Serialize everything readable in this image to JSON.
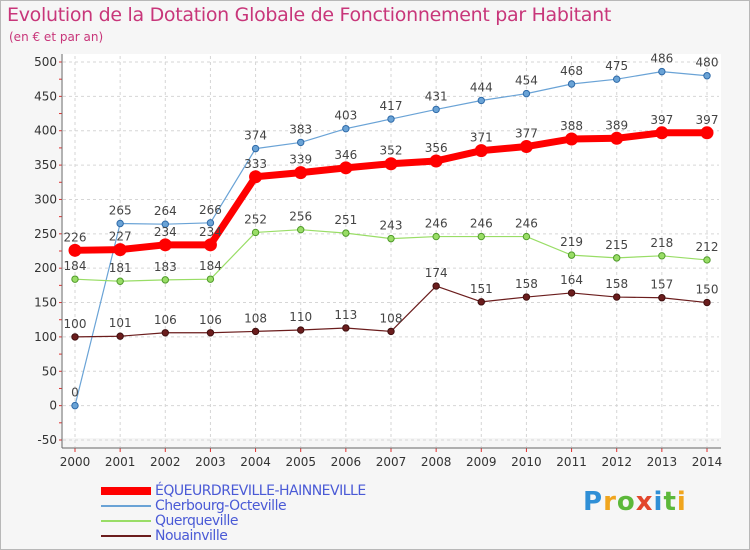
{
  "title": "Evolution de la Dotation Globale de Fonctionnement par Habitant",
  "subtitle": "(en € et par an)",
  "logo": {
    "letters": [
      "P",
      "r",
      "o",
      "x",
      "i",
      "t",
      "i"
    ],
    "colors": [
      "#2f8fd6",
      "#f0a51e",
      "#5cb83a",
      "#e2462c",
      "#2f8fd6",
      "#5cb83a",
      "#f0a51e"
    ]
  },
  "chart_data": {
    "type": "line",
    "title": "Evolution de la Dotation Globale de Fonctionnement par Habitant",
    "ylabel": "(en € et par an)",
    "x": [
      "2000",
      "2001",
      "2002",
      "2003",
      "2004",
      "2005",
      "2006",
      "2007",
      "2008",
      "2009",
      "2010",
      "2011",
      "2012",
      "2013",
      "2014"
    ],
    "ylim": [
      -50,
      500
    ],
    "yticks": [
      -50,
      0,
      50,
      100,
      150,
      200,
      250,
      300,
      350,
      400,
      450,
      500
    ],
    "series": [
      {
        "name": "ÉQUEURDREVILLE-HAINNEVILLE",
        "color": "#ff0000",
        "width": 7,
        "values": [
          226,
          227,
          234,
          234,
          333,
          339,
          346,
          352,
          356,
          371,
          377,
          388,
          389,
          397,
          397
        ]
      },
      {
        "name": "Cherbourg-Octeville",
        "color": "#6aa3d6",
        "width": 1.2,
        "values": [
          0,
          265,
          264,
          266,
          374,
          383,
          403,
          417,
          431,
          444,
          454,
          468,
          475,
          486,
          480
        ]
      },
      {
        "name": "Querqueville",
        "color": "#99dd66",
        "width": 1.2,
        "values": [
          184,
          181,
          183,
          184,
          252,
          256,
          251,
          243,
          246,
          246,
          246,
          219,
          215,
          218,
          212
        ]
      },
      {
        "name": "Nouainville",
        "color": "#6b1d1d",
        "width": 1.2,
        "values": [
          100,
          101,
          106,
          106,
          108,
          110,
          113,
          108,
          174,
          151,
          158,
          164,
          158,
          157,
          150
        ]
      }
    ]
  }
}
